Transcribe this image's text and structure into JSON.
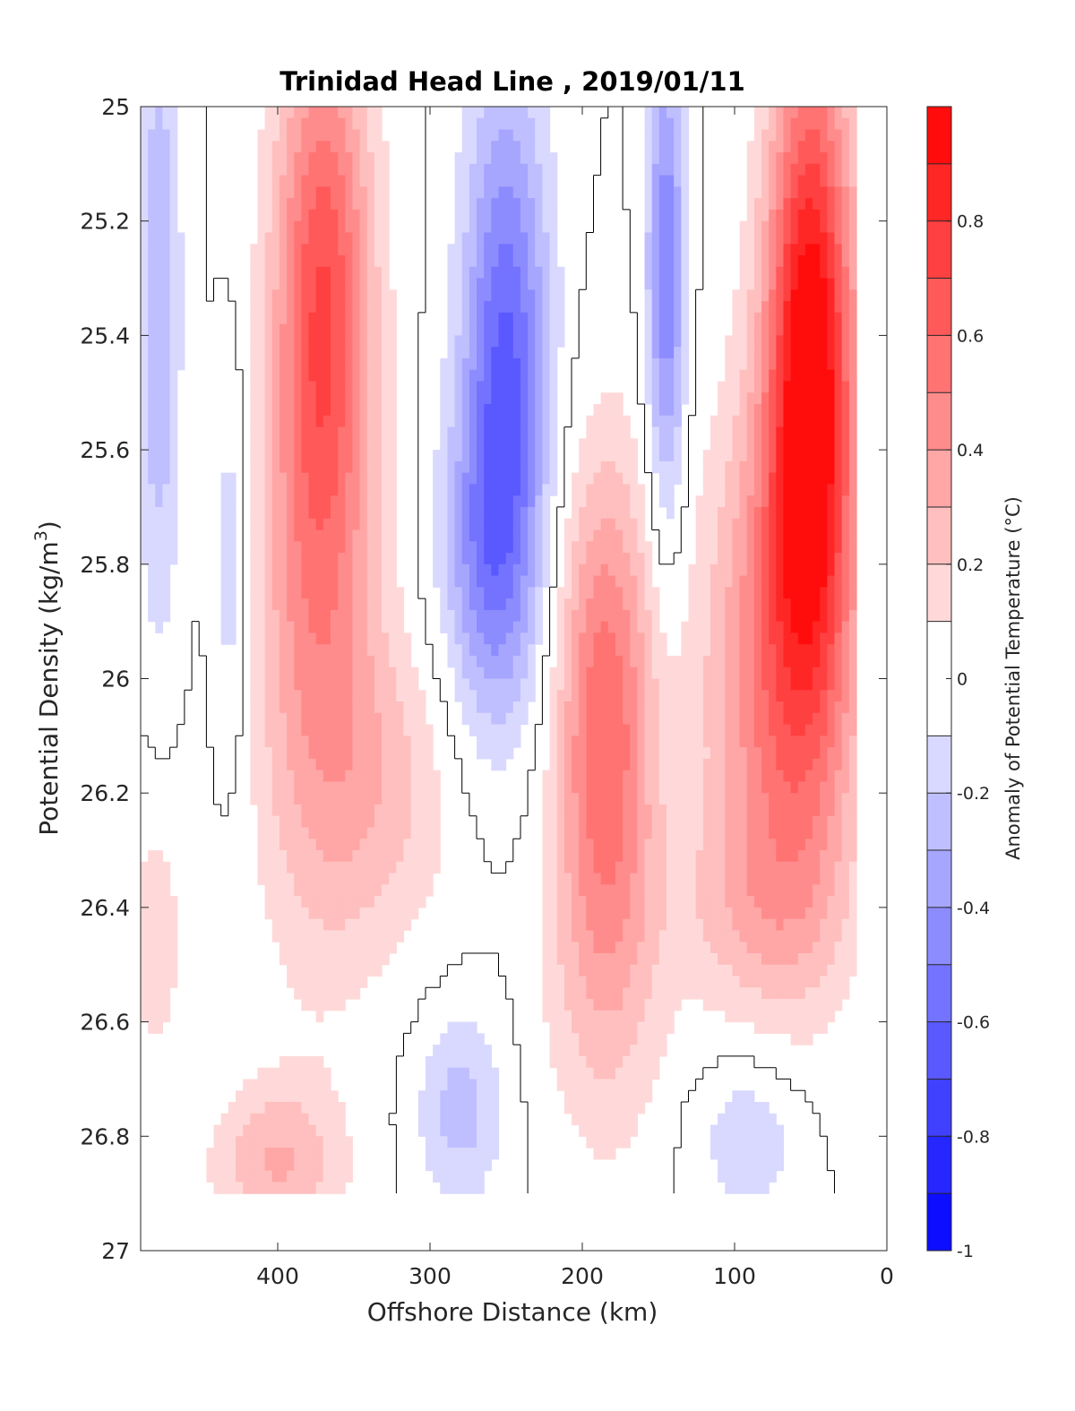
{
  "chart_data": {
    "type": "heatmap",
    "title": "Trinidad Head Line , 2019/01/11",
    "xlabel": "Offshore Distance (km)",
    "ylabel_main": "Potential Density (kg/m",
    "ylabel_sup": "3",
    "ylabel_close": ")",
    "colorbar_label": "Anomaly of Potential Temperature (°C)",
    "xlim": [
      490,
      0
    ],
    "x_reversed": true,
    "ylim": [
      25,
      27
    ],
    "y_reversed": true,
    "x_ticks": [
      400,
      300,
      200,
      100,
      0
    ],
    "x_tick_labels": [
      "400",
      "300",
      "200",
      "100",
      "0"
    ],
    "y_ticks": [
      25,
      25.2,
      25.4,
      25.6,
      25.8,
      26,
      26.2,
      26.4,
      26.6,
      26.8,
      27
    ],
    "y_tick_labels": [
      "25",
      "25.2",
      "25.4",
      "25.6",
      "25.8",
      "26",
      "26.2",
      "26.4",
      "26.6",
      "26.8",
      "27"
    ],
    "colorbar_range": [
      -1,
      1
    ],
    "colorbar_levels": [
      -1,
      -0.9,
      -0.8,
      -0.7,
      -0.6,
      -0.5,
      -0.4,
      -0.3,
      -0.2,
      -0.1,
      0.1,
      0.2,
      0.3,
      0.4,
      0.5,
      0.6,
      0.7,
      0.8,
      0.9,
      1.0
    ],
    "colorbar_ticks": [
      0.8,
      0.6,
      0.4,
      0.2,
      0,
      -0.2,
      -0.4,
      -0.6,
      -0.8,
      -1
    ],
    "colorbar_tick_labels": [
      "0.8",
      "0.6",
      "0.4",
      "0.2",
      "0",
      "-0.2",
      "-0.4",
      "-0.6",
      "-0.8",
      "-1"
    ],
    "colormap": {
      "negative_end": "#0000ff",
      "zero": "#ffffff",
      "positive_end": "#ff0000"
    },
    "zero_contour_color": "#000000",
    "data_sigma_range": [
      25,
      26.9
    ],
    "features": [
      {
        "x": 478,
        "y": 25.35,
        "value": -0.3,
        "sx": 10,
        "sy": 0.4
      },
      {
        "x": 430,
        "y": 25.8,
        "value": -0.2,
        "sx": 9,
        "sy": 0.25
      },
      {
        "x": 370,
        "y": 25.3,
        "value": 0.6,
        "sx": 22,
        "sy": 0.35
      },
      {
        "x": 375,
        "y": 25.9,
        "value": 0.35,
        "sx": 30,
        "sy": 0.4
      },
      {
        "x": 330,
        "y": 26.2,
        "value": 0.2,
        "sx": 35,
        "sy": 0.2
      },
      {
        "x": 250,
        "y": 25.45,
        "value": -0.6,
        "sx": 20,
        "sy": 0.35
      },
      {
        "x": 265,
        "y": 25.8,
        "value": -0.3,
        "sx": 22,
        "sy": 0.2
      },
      {
        "x": 185,
        "y": 26.05,
        "value": 0.55,
        "sx": 22,
        "sy": 0.3
      },
      {
        "x": 185,
        "y": 26.5,
        "value": 0.2,
        "sx": 30,
        "sy": 0.25
      },
      {
        "x": 145,
        "y": 25.3,
        "value": -0.5,
        "sx": 9,
        "sy": 0.3
      },
      {
        "x": 50,
        "y": 25.45,
        "value": 1.0,
        "sx": 20,
        "sy": 0.4
      },
      {
        "x": 70,
        "y": 26.0,
        "value": 0.5,
        "sx": 35,
        "sy": 0.35
      },
      {
        "x": 85,
        "y": 26.4,
        "value": 0.15,
        "sx": 40,
        "sy": 0.12
      },
      {
        "x": 480,
        "y": 26.45,
        "value": 0.15,
        "sx": 15,
        "sy": 0.2
      },
      {
        "x": 400,
        "y": 26.85,
        "value": 0.3,
        "sx": 30,
        "sy": 0.1
      },
      {
        "x": 280,
        "y": 26.75,
        "value": -0.25,
        "sx": 20,
        "sy": 0.12
      },
      {
        "x": 90,
        "y": 26.8,
        "value": -0.2,
        "sx": 25,
        "sy": 0.1
      }
    ]
  }
}
